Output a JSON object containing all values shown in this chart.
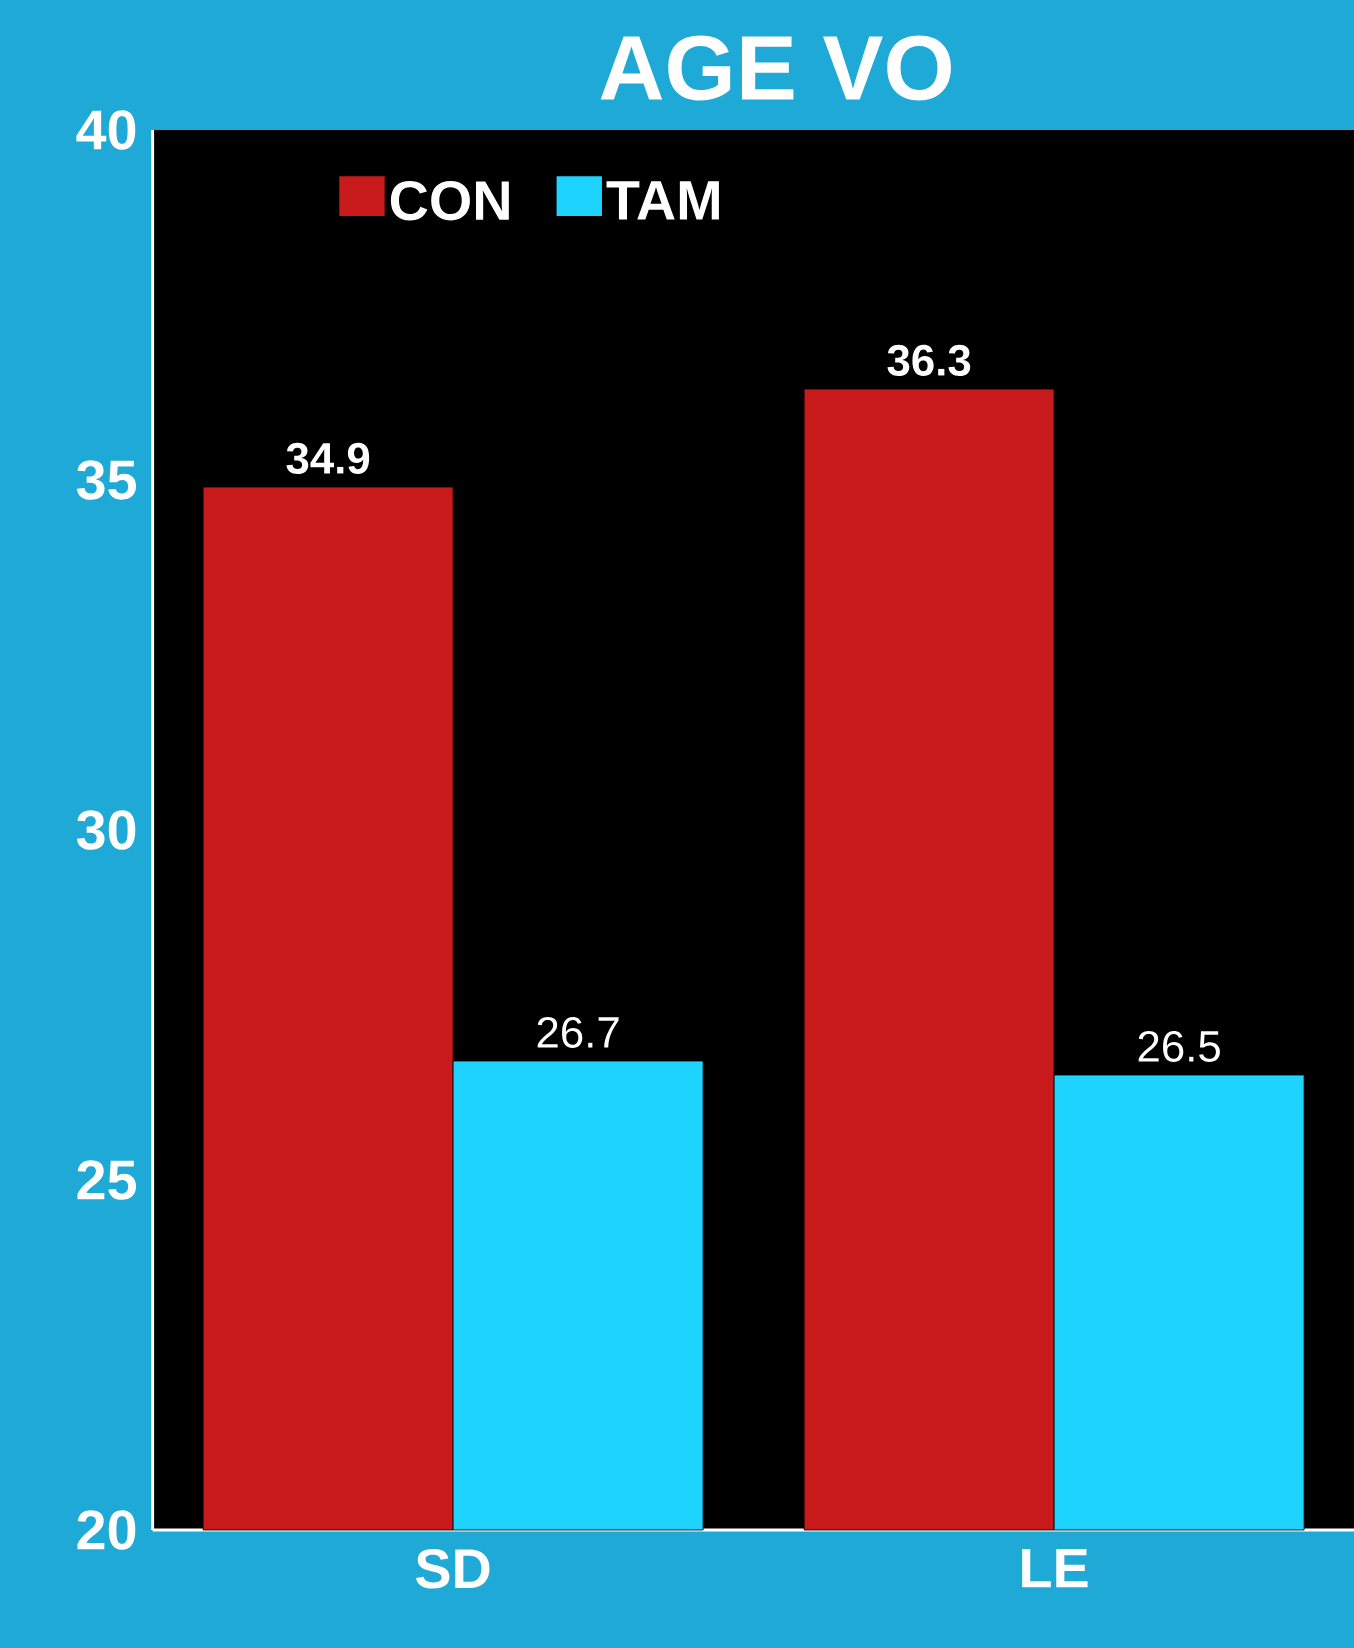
{
  "chart_data": {
    "type": "bar",
    "title": "AGE  VO",
    "categories": [
      "SD",
      "LE"
    ],
    "series": [
      {
        "name": "CON",
        "color": "#c81a1a",
        "values": [
          34.9,
          36.3
        ]
      },
      {
        "name": "TAM",
        "color": "#1fd3ff",
        "values": [
          26.7,
          26.5
        ]
      }
    ],
    "ylim": [
      20,
      40
    ],
    "yticks": [
      20,
      25,
      30,
      35,
      40
    ],
    "data_labels": true,
    "legend": "top left",
    "grid": false
  }
}
